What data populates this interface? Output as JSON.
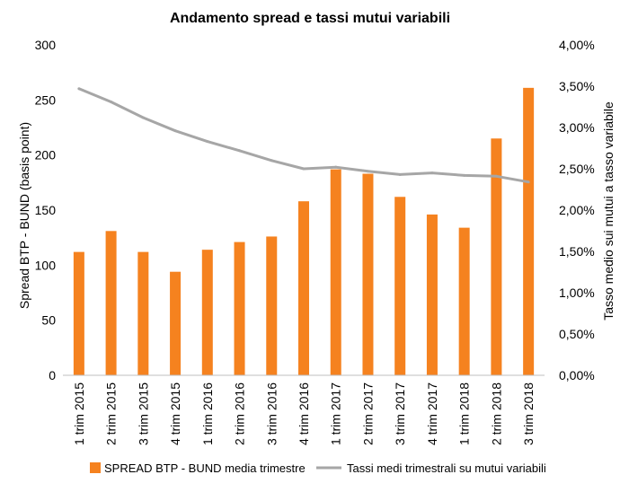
{
  "chart_data": {
    "type": "bar",
    "title": "Andamento spread e tassi mutui variabili",
    "categories": [
      "1 trim 2015",
      "2 trim 2015",
      "3 trim 2015",
      "4 trim 2015",
      "1 trim 2016",
      "2 trim 2016",
      "3 trim 2016",
      "4 trim 2016",
      "1 trim 2017",
      "2 trim 2017",
      "3 trim 2017",
      "4 trim 2017",
      "1 trim 2018",
      "2 trim 2018",
      "3 trim 2018"
    ],
    "ylabel": "Spread BTP - BUND (basis point)",
    "y2label": "Tasso medio sui mutui a tasso variabile",
    "ylim": [
      0,
      300
    ],
    "y2lim": [
      0,
      4
    ],
    "y_ticks": [
      "0",
      "50",
      "100",
      "150",
      "200",
      "250",
      "300"
    ],
    "y2_ticks": [
      "0,00%",
      "0,50%",
      "1,00%",
      "1,50%",
      "2,00%",
      "2,50%",
      "3,00%",
      "3,50%",
      "4,00%"
    ],
    "series": [
      {
        "name": "SPREAD BTP - BUND media trimestre",
        "type": "bar",
        "axis": "left",
        "color": "#f5821f",
        "values": [
          112,
          131,
          112,
          94,
          114,
          121,
          126,
          158,
          187,
          183,
          162,
          146,
          134,
          215,
          261
        ]
      },
      {
        "name": "Tassi medi trimestrali su mutui variabili",
        "type": "line",
        "axis": "right",
        "color": "#a6a6a6",
        "values": [
          3.47,
          3.31,
          3.12,
          2.96,
          2.83,
          2.72,
          2.6,
          2.5,
          2.52,
          2.47,
          2.43,
          2.45,
          2.42,
          2.41,
          2.34
        ]
      }
    ],
    "legend_position": "bottom",
    "grid": false
  }
}
